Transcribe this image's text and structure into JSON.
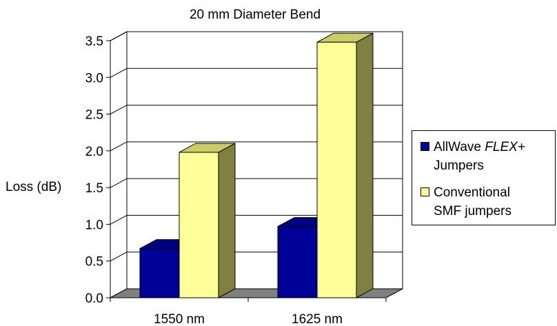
{
  "chart_data": {
    "type": "bar",
    "title": "20 mm Diameter Bend",
    "ylabel": "Loss (dB)",
    "xlabel": "",
    "categories": [
      "1550 nm",
      "1625 nm"
    ],
    "ylim": [
      0,
      3.5
    ],
    "yticks": [
      "0.0",
      "0.5",
      "1.0",
      "1.5",
      "2.0",
      "2.5",
      "3.0",
      "3.5"
    ],
    "grid": true,
    "legend_position": "right",
    "series": [
      {
        "name_prefix": "AllWave ",
        "name_emph": "FLEX+",
        "name_rest": "Jumpers",
        "values": [
          0.67,
          0.97
        ],
        "color": "#000099"
      },
      {
        "name_prefix": "Conventional",
        "name_rest": "SMF jumpers",
        "values": [
          1.98,
          3.48
        ],
        "color": "#ffff99"
      }
    ]
  }
}
